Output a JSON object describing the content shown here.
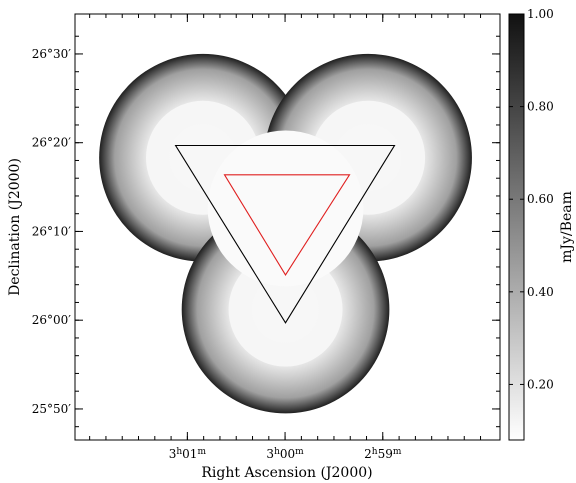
{
  "chart_data": {
    "type": "heatmap",
    "xlabel": "Right Ascension (J2000)",
    "ylabel": "Declination (J2000)",
    "x_ticks": [
      {
        "value": 181,
        "text": "3h01m",
        "base": "3",
        "unit1": "h",
        "mid": "01",
        "unit2": "m"
      },
      {
        "value": 180,
        "text": "3h00m",
        "base": "3",
        "unit1": "h",
        "mid": "00",
        "unit2": "m"
      },
      {
        "value": 179,
        "text": "2h59m",
        "base": "2",
        "unit1": "h",
        "mid": "59",
        "unit2": "m"
      }
    ],
    "y_ticks": [
      {
        "value": 26.5,
        "text": "26°30′"
      },
      {
        "value": 26.3333,
        "text": "26°20′"
      },
      {
        "value": 26.1667,
        "text": "26°10′"
      },
      {
        "value": 26.0,
        "text": "26°00′"
      },
      {
        "value": 25.8333,
        "text": "25°50′"
      }
    ],
    "colorbar": {
      "label": "mJy/Beam",
      "range": [
        0.08,
        1.0
      ],
      "ticks": [
        {
          "value": 1.0,
          "text": "1.00"
        },
        {
          "value": 0.8,
          "text": "0.80"
        },
        {
          "value": 0.6,
          "text": "0.60"
        },
        {
          "value": 0.4,
          "text": "0.40"
        },
        {
          "value": 0.2,
          "text": "0.20"
        }
      ],
      "colormap": "white-to-black"
    },
    "map": {
      "description_value": "sensitivity map, three overlapping circular pointings",
      "min_value": 0.08,
      "max_value": 1.0,
      "pointings": [
        {
          "ra_min": 180.84,
          "dec": 26.305
        },
        {
          "ra_min": 179.15,
          "dec": 26.305
        },
        {
          "ra_min": 179.995,
          "dec": 26.02
        }
      ],
      "pointing_radius_deg": 0.195
    },
    "triangles": [
      {
        "name": "outer",
        "color": "#000000",
        "vertices": [
          [
            181.12,
            26.328
          ],
          [
            178.88,
            26.328
          ],
          [
            179.995,
            25.995
          ]
        ]
      },
      {
        "name": "inner",
        "color": "#e02020",
        "vertices": [
          [
            180.62,
            26.273
          ],
          [
            179.34,
            26.273
          ],
          [
            179.995,
            26.085
          ]
        ]
      }
    ],
    "xlim": [
      182.15,
      177.8
    ],
    "ylim": [
      25.775,
      26.575
    ]
  }
}
